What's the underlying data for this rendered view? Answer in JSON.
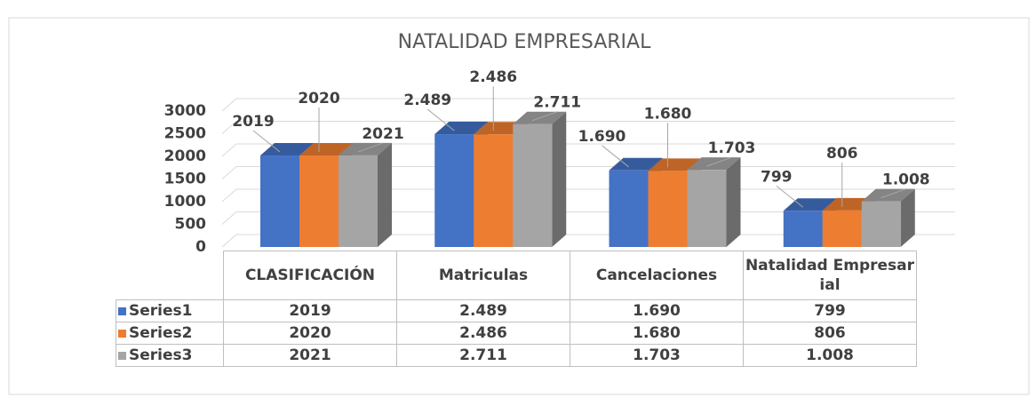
{
  "chart_data": {
    "type": "bar3d",
    "title": "NATALIDAD EMPRESARIAL",
    "categories": [
      "CLASIFICACIÓN",
      "Matriculas",
      "Cancelaciones",
      "Natalidad Empresarial"
    ],
    "series": [
      {
        "name": "Series1",
        "color": "#4472c4",
        "values": [
          2019,
          2489,
          1690,
          799
        ],
        "value_labels": [
          "2019",
          "2.489",
          "1.690",
          "799"
        ]
      },
      {
        "name": "Series2",
        "color": "#ed7d31",
        "values": [
          2020,
          2486,
          1680,
          806
        ],
        "value_labels": [
          "2020",
          "2.486",
          "1.680",
          "806"
        ]
      },
      {
        "name": "Series3",
        "color": "#a5a5a5",
        "values": [
          2021,
          2711,
          1703,
          1008
        ],
        "value_labels": [
          "2021",
          "2.711",
          "1.703",
          "1.008"
        ]
      }
    ],
    "ylim": [
      0,
      3000
    ],
    "yticks": [
      0,
      500,
      1000,
      1500,
      2000,
      2500,
      3000
    ],
    "grid": true
  }
}
